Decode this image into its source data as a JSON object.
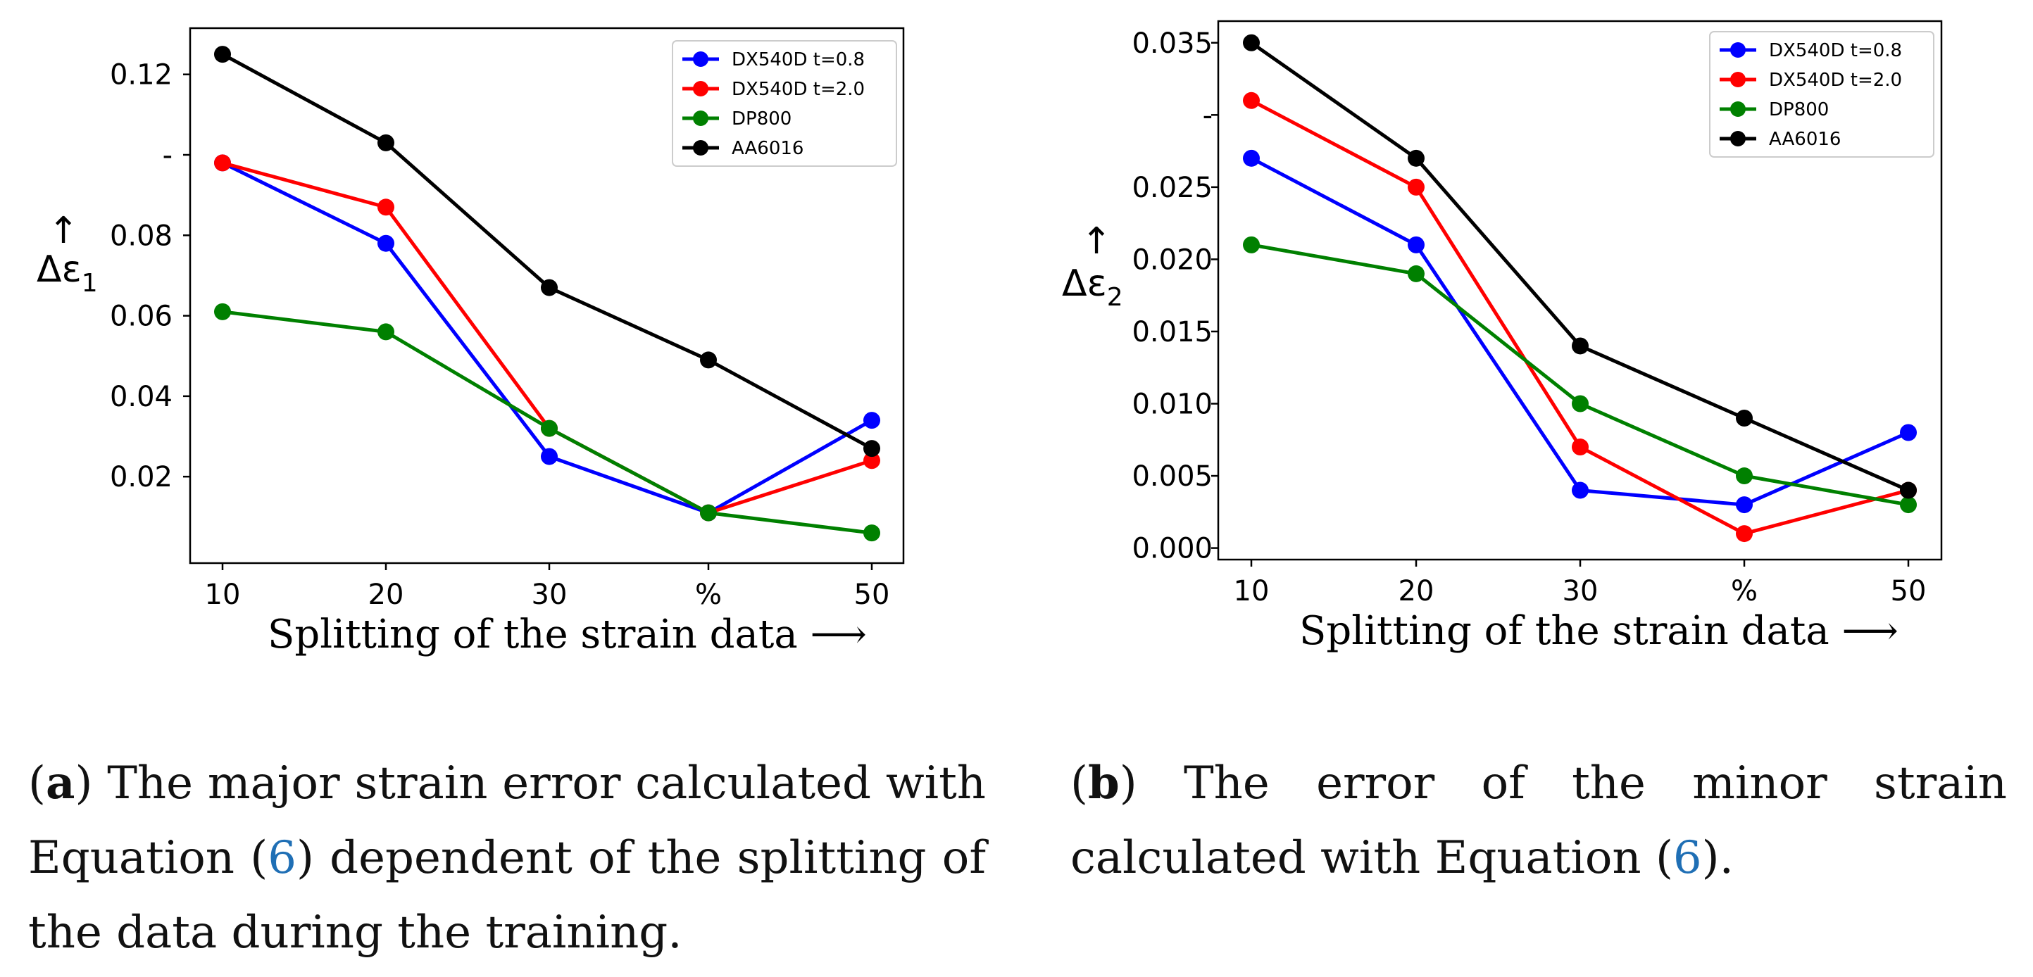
{
  "chart_data": [
    {
      "panel": "a",
      "type": "line",
      "categories": [
        "10",
        "20",
        "30",
        "%",
        "50"
      ],
      "series": [
        {
          "name": "DX540D t=0.8",
          "color": "#0000ff",
          "values": [
            0.098,
            0.078,
            0.025,
            0.011,
            0.034
          ]
        },
        {
          "name": "DX540D t=2.0",
          "color": "#ff0000",
          "values": [
            0.098,
            0.087,
            0.032,
            0.011,
            0.024
          ]
        },
        {
          "name": "DP800",
          "color": "#008000",
          "values": [
            0.061,
            0.056,
            0.032,
            0.011,
            0.006
          ]
        },
        {
          "name": "AA6016",
          "color": "#000000",
          "values": [
            0.125,
            0.103,
            0.067,
            0.049,
            0.027
          ]
        }
      ],
      "yticks": [
        0.02,
        0.04,
        0.06,
        0.08,
        0.1,
        0.12
      ],
      "ytick_labels": [
        "0.02",
        "0.04",
        "0.06",
        "0.08",
        "-",
        "0.12"
      ],
      "ylim": [
        -0.0015,
        0.1315
      ],
      "xlabel": "Splitting of the strain data",
      "xlabel_arrow": "⟶",
      "ylabel": "Δε",
      "ylabel_sub": "1",
      "ylabel_arrow": "↑",
      "legend": "top-right"
    },
    {
      "panel": "b",
      "type": "line",
      "categories": [
        "10",
        "20",
        "30",
        "%",
        "50"
      ],
      "series": [
        {
          "name": "DX540D t=0.8",
          "color": "#0000ff",
          "values": [
            0.027,
            0.021,
            0.004,
            0.003,
            0.008
          ]
        },
        {
          "name": "DX540D t=2.0",
          "color": "#ff0000",
          "values": [
            0.031,
            0.025,
            0.007,
            0.001,
            0.004
          ]
        },
        {
          "name": "DP800",
          "color": "#008000",
          "values": [
            0.021,
            0.019,
            0.01,
            0.005,
            0.003
          ]
        },
        {
          "name": "AA6016",
          "color": "#000000",
          "values": [
            0.035,
            0.027,
            0.014,
            0.009,
            0.004
          ]
        }
      ],
      "yticks": [
        0.0,
        0.005,
        0.01,
        0.015,
        0.02,
        0.025,
        0.03,
        0.035
      ],
      "ytick_labels": [
        "0.000",
        "0.005",
        "0.010",
        "0.015",
        "0.020",
        "0.025",
        "-",
        "0.035"
      ],
      "ylim": [
        -0.0008,
        0.0365
      ],
      "xlabel": "Splitting of the strain data",
      "xlabel_arrow": "⟶",
      "ylabel": "Δε",
      "ylabel_sub": "2",
      "ylabel_arrow": "↑",
      "legend": "top-right"
    }
  ],
  "captions": {
    "a": {
      "label": "a",
      "pre": " The major strain error calculated with Equation (",
      "ref": "6",
      "post": ") dependent of the splitting of the data during the training."
    },
    "b": {
      "label": "b",
      "pre": " The error of the minor strain calculated with Equation (",
      "ref": "6",
      "post": ")."
    }
  }
}
